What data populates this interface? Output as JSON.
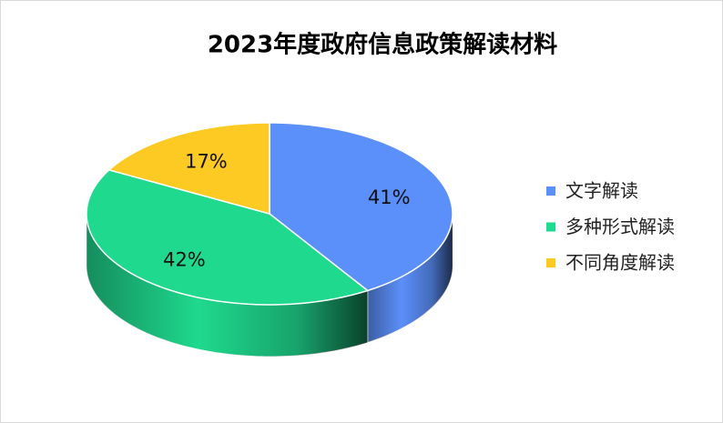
{
  "chart_data": {
    "type": "pie",
    "title": "2023年度政府信息政策解读材料",
    "categories": [
      "文字解读",
      "多种形式解读",
      "不同角度解读"
    ],
    "values": [
      41,
      42,
      17
    ],
    "value_labels": [
      "41%",
      "42%",
      "17%"
    ],
    "colors": [
      "#5b8ff9",
      "#1fd98e",
      "#fcca22"
    ],
    "legend": "right"
  }
}
